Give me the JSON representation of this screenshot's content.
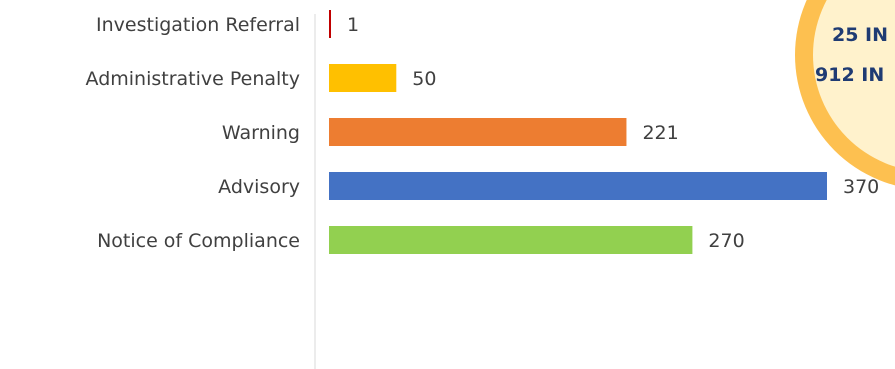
{
  "chart_data": {
    "type": "bar",
    "orientation": "horizontal",
    "categories": [
      "Investigation Referral",
      "Administrative Penalty",
      "Warning",
      "Advisory",
      "Notice of Compliance"
    ],
    "values": [
      1,
      50,
      221,
      370,
      270
    ],
    "colors": [
      "#c00000",
      "#ffc000",
      "#ed7d31",
      "#4472c4",
      "#92d050"
    ],
    "xlim": [
      0,
      370
    ],
    "grid": false,
    "data_labels": true
  },
  "badge": {
    "line1": "25 IN",
    "line2": "912 IN",
    "ring_color": "#fdc050",
    "fill_color": "#fff2cc",
    "text_color": "#1f3b73"
  }
}
